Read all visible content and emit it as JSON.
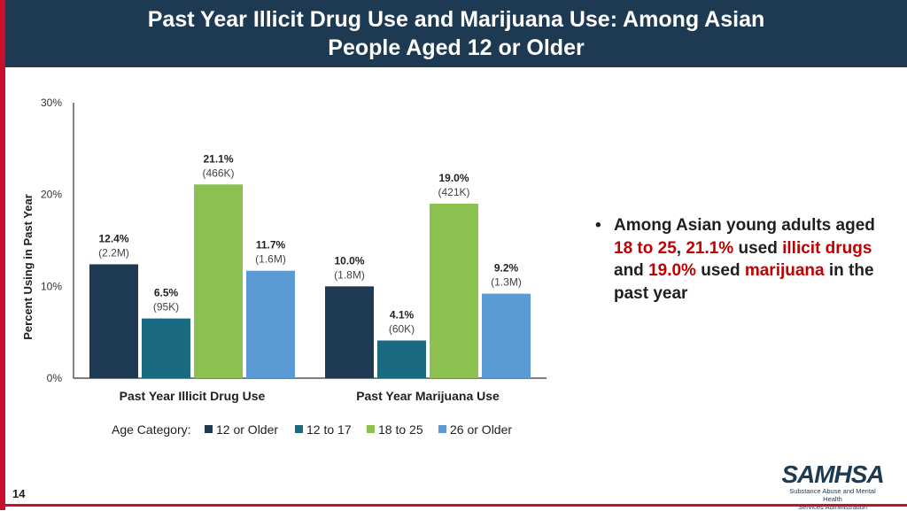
{
  "slide": {
    "title_line1": "Past Year Illicit Drug Use and Marijuana Use: Among Asian",
    "title_line2": "People Aged 12 or Older",
    "page_number": "14"
  },
  "bullet": {
    "marker": "•",
    "parts": [
      "Among Asian young adults aged ",
      "18 to 25",
      ", ",
      "21.1%",
      " used ",
      "illicit drugs",
      " and ",
      "19.0%",
      " used ",
      "marijuana",
      " in the past year"
    ]
  },
  "logo": {
    "name": "SAMHSA",
    "subtitle_line1": "Substance Abuse and Mental Health",
    "subtitle_line2": "Services Administration"
  },
  "colors": {
    "title_bar": "#1e3a52",
    "accent": "#c8102e",
    "highlight": "#c00000",
    "series": [
      "#1e3a52",
      "#1a6a82",
      "#8cc152",
      "#5b9bd5"
    ]
  },
  "chart_data": {
    "type": "bar",
    "categories": [
      "Past Year Illicit Drug Use",
      "Past Year Marijuana Use"
    ],
    "series": [
      {
        "name": "12 or Older",
        "values": [
          12.4,
          10.0
        ],
        "labels": [
          "(2.2M)",
          "(1.8M)"
        ]
      },
      {
        "name": "12 to 17",
        "values": [
          6.5,
          4.1
        ],
        "labels": [
          "(95K)",
          "(60K)"
        ]
      },
      {
        "name": "18 to 25",
        "values": [
          21.1,
          19.0
        ],
        "labels": [
          "(466K)",
          "(421K)"
        ]
      },
      {
        "name": "26 or Older",
        "values": [
          11.7,
          9.2
        ],
        "labels": [
          "(1.6M)",
          "(1.3M)"
        ]
      }
    ],
    "ylabel": "Percent Using in Past Year",
    "ylim": [
      0,
      30
    ],
    "yticks": [
      "0%",
      "10%",
      "20%",
      "30%"
    ],
    "legend_title": "Age Category:",
    "legend_position": "bottom"
  }
}
